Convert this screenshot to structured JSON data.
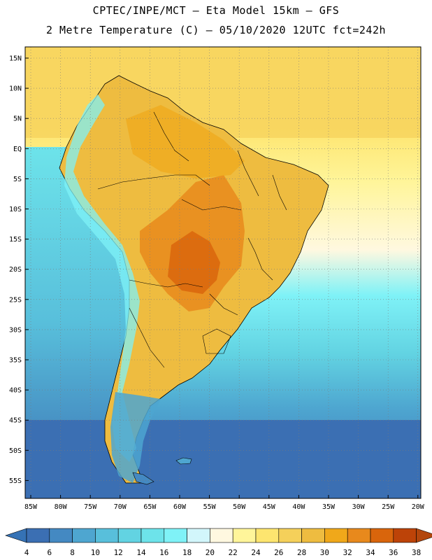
{
  "title": {
    "line1": "CPTEC/INPE/MCT –  Eta Model 15km – GFS",
    "line2": "2 Metre Temperature (C) – 05/10/2020 12UTC fct=242h"
  },
  "axes": {
    "lat_labels": [
      "15N",
      "10N",
      "5N",
      "EQ",
      "5S",
      "10S",
      "15S",
      "20S",
      "25S",
      "30S",
      "35S",
      "40S",
      "45S",
      "50S",
      "55S"
    ],
    "lon_labels": [
      "85W",
      "80W",
      "75W",
      "70W",
      "65W",
      "60W",
      "55W",
      "50W",
      "45W",
      "40W",
      "35W",
      "30W",
      "25W",
      "20W"
    ]
  },
  "colorbar": {
    "labels": [
      "4",
      "6",
      "8",
      "10",
      "12",
      "14",
      "16",
      "18",
      "20",
      "22",
      "24",
      "26",
      "28",
      "30",
      "32",
      "34",
      "36",
      "38"
    ],
    "colors": [
      "#3b6fb3",
      "#4489c2",
      "#4ea6d0",
      "#58bfdb",
      "#62d3e2",
      "#6de3ea",
      "#7ff2f7",
      "#d2f6fb",
      "#fff8e0",
      "#fff59a",
      "#fde56f",
      "#f5d05a",
      "#eebc40",
      "#f0a81a",
      "#e8891c",
      "#d9650c",
      "#bd4308"
    ],
    "end_low_color": "#3572b5",
    "end_high_color": "#b3460c"
  }
}
